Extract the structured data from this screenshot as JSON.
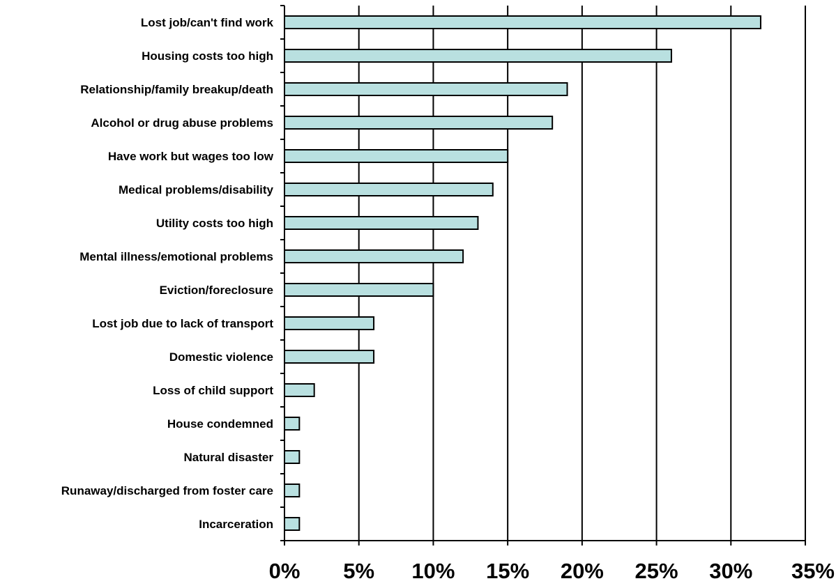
{
  "chart_data": {
    "type": "bar",
    "orientation": "horizontal",
    "title": "",
    "xlabel": "",
    "ylabel": "",
    "categories": [
      "Lost job/can't find work",
      "Housing costs too high",
      "Relationship/family breakup/death",
      "Alcohol or drug abuse problems",
      "Have work but wages too low",
      "Medical problems/disability",
      "Utility costs too high",
      "Mental illness/emotional problems",
      "Eviction/foreclosure",
      "Lost job due to lack of transport",
      "Domestic violence",
      "Loss of child support",
      "House condemned",
      "Natural disaster",
      "Runaway/discharged from foster care",
      "Incarceration"
    ],
    "values": [
      32,
      26,
      19,
      18,
      15,
      14,
      13,
      12,
      10,
      6,
      6,
      2,
      1,
      1,
      1,
      1
    ],
    "xlim": [
      0,
      35
    ],
    "xticks": [
      0,
      5,
      10,
      15,
      20,
      25,
      30,
      35
    ],
    "xtick_labels": [
      "0%",
      "5%",
      "10%",
      "15%",
      "20%",
      "25%",
      "30%",
      "35%"
    ],
    "grid": "vertical gridlines",
    "legend": "none",
    "colors": {
      "bar_fill": "#b9e0e0",
      "bar_stroke": "#000000",
      "grid": "#000000"
    }
  }
}
